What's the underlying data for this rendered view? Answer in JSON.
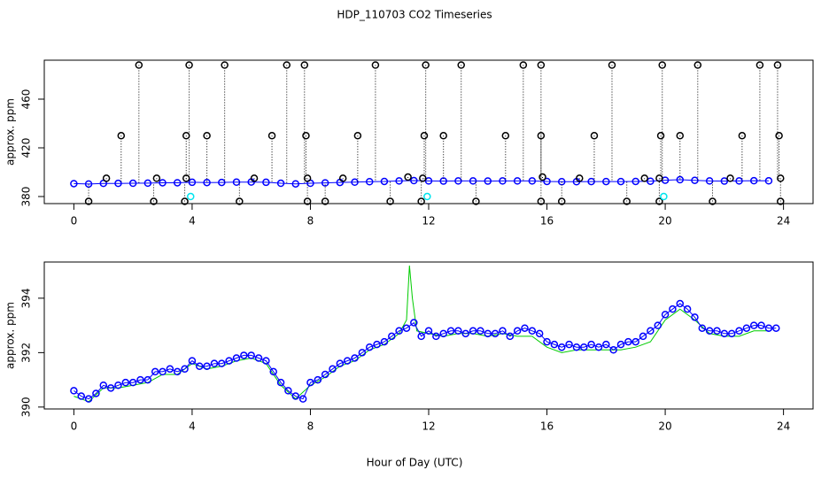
{
  "chart_data": [
    {
      "type": "scatter",
      "title": "HDP_110703  CO2 Timeseries",
      "ylabel": "approx. ppm",
      "xlim": [
        -1,
        25
      ],
      "ylim": [
        374.2,
        492
      ],
      "xticks": [
        0,
        4,
        8,
        12,
        16,
        20,
        24
      ],
      "yticks": [
        380,
        420,
        460
      ],
      "series": [
        {
          "color": "#0000ff",
          "marker": "circle",
          "line": true,
          "x": [
            0,
            0.5,
            1,
            1.5,
            2,
            2.5,
            3,
            3.5,
            4,
            4.5,
            5,
            5.5,
            6,
            6.5,
            7,
            7.5,
            8,
            8.5,
            9,
            9.5,
            10,
            10.5,
            11,
            11.5,
            12,
            12.5,
            13,
            13.5,
            14,
            14.5,
            15,
            15.5,
            16,
            16.5,
            17,
            17.5,
            18,
            18.5,
            19,
            19.5,
            20,
            20.5,
            21,
            21.5,
            22,
            22.5,
            23,
            23.5
          ],
          "values": [
            390.6,
            390.3,
            390.8,
            390.8,
            390.9,
            391.0,
            391.3,
            391.3,
            391.7,
            391.5,
            391.6,
            391.8,
            391.9,
            391.7,
            390.9,
            390.4,
            390.9,
            391.2,
            391.6,
            391.8,
            392.2,
            392.4,
            392.8,
            393.1,
            392.8,
            392.7,
            392.8,
            392.8,
            392.7,
            392.8,
            392.8,
            392.8,
            392.4,
            392.2,
            392.2,
            392.3,
            392.3,
            392.3,
            392.4,
            392.6,
            393.4,
            393.8,
            393.3,
            392.8,
            392.7,
            392.8,
            393.0,
            392.9
          ]
        },
        {
          "color": "#000000",
          "marker": "circle",
          "droplines": true,
          "x": [
            2.2,
            3.9,
            5.1,
            7.2,
            7.8,
            10.2,
            11.9,
            13.1,
            15.2,
            15.8,
            18.2,
            19.9,
            21.1,
            23.2,
            23.8,
            1.6,
            3.8,
            4.5,
            6.7,
            7.85,
            9.6,
            11.85,
            12.5,
            14.6,
            15.8,
            17.6,
            19.85,
            20.5,
            22.6,
            23.85,
            1.1,
            2.8,
            3.8,
            6.1,
            7.9,
            9.1,
            11.3,
            11.8,
            15.85,
            17.1,
            19.3,
            19.8,
            22.2,
            23.9,
            0.5,
            2.7,
            3.75,
            5.6,
            7.9,
            8.5,
            10.7,
            11.75,
            13.6,
            15.8,
            16.5,
            18.7,
            19.8,
            21.6,
            23.9
          ],
          "values": [
            488,
            488,
            488,
            488,
            488,
            488,
            488,
            488,
            488,
            488,
            488,
            488,
            488,
            488,
            488,
            430,
            430,
            430,
            430,
            430,
            430,
            430,
            430,
            430,
            430,
            430,
            430,
            430,
            430,
            430,
            395,
            395,
            395,
            395,
            395,
            395,
            396,
            395,
            396,
            395,
            395,
            395,
            395,
            395,
            376,
            376,
            376,
            376,
            376,
            376,
            376,
            376,
            376,
            376,
            376,
            376,
            376,
            376,
            376
          ]
        },
        {
          "color": "#00e5ee",
          "marker": "circle",
          "x": [
            3.95,
            11.95,
            19.95
          ],
          "values": [
            380,
            380,
            380
          ]
        }
      ]
    },
    {
      "type": "scatter",
      "ylabel": "approx. ppm",
      "xlabel": "Hour of Day (UTC)",
      "xlim": [
        -1,
        25
      ],
      "ylim": [
        389.93,
        395.33
      ],
      "xticks": [
        0,
        4,
        8,
        12,
        16,
        20,
        24
      ],
      "yticks": [
        390,
        392,
        394
      ],
      "series": [
        {
          "color": "#00cc00",
          "line": true,
          "x": [
            0,
            0.5,
            1,
            1.5,
            2,
            2.5,
            3,
            3.5,
            4,
            4.5,
            5,
            5.5,
            6,
            6.5,
            7,
            7.5,
            8,
            8.5,
            9,
            9.5,
            10,
            10.5,
            11,
            11.25,
            11.35,
            11.45,
            11.6,
            12,
            12.5,
            13,
            13.5,
            14,
            14.5,
            15,
            15.5,
            16,
            16.5,
            17,
            17.5,
            18,
            18.5,
            19,
            19.5,
            20,
            20.5,
            21,
            21.5,
            22,
            22.5,
            23,
            23.5
          ],
          "values": [
            390.4,
            390.2,
            390.7,
            390.7,
            390.8,
            390.9,
            391.2,
            391.2,
            391.6,
            391.4,
            391.5,
            391.7,
            391.8,
            391.6,
            390.8,
            390.3,
            390.8,
            391.1,
            391.5,
            391.7,
            392.1,
            392.3,
            392.7,
            393.2,
            395.2,
            394.0,
            392.8,
            392.7,
            392.6,
            392.7,
            392.7,
            392.6,
            392.7,
            392.6,
            392.6,
            392.2,
            392.0,
            392.1,
            392.1,
            392.1,
            392.1,
            392.2,
            392.4,
            393.2,
            393.6,
            393.2,
            392.7,
            392.6,
            392.6,
            392.8,
            392.8
          ]
        },
        {
          "color": "#0000ff",
          "marker": "circle",
          "line": true,
          "x": [
            0,
            0.25,
            0.5,
            0.75,
            1,
            1.25,
            1.5,
            1.75,
            2,
            2.25,
            2.5,
            2.75,
            3,
            3.25,
            3.5,
            3.75,
            4,
            4.25,
            4.5,
            4.75,
            5,
            5.25,
            5.5,
            5.75,
            6,
            6.25,
            6.5,
            6.75,
            7,
            7.25,
            7.5,
            7.75,
            8,
            8.25,
            8.5,
            8.75,
            9,
            9.25,
            9.5,
            9.75,
            10,
            10.25,
            10.5,
            10.75,
            11,
            11.25,
            11.5,
            11.75,
            12,
            12.25,
            12.5,
            12.75,
            13,
            13.25,
            13.5,
            13.75,
            14,
            14.25,
            14.5,
            14.75,
            15,
            15.25,
            15.5,
            15.75,
            16,
            16.25,
            16.5,
            16.75,
            17,
            17.25,
            17.5,
            17.75,
            18,
            18.25,
            18.5,
            18.75,
            19,
            19.25,
            19.5,
            19.75,
            20,
            20.25,
            20.5,
            20.75,
            21,
            21.25,
            21.5,
            21.75,
            22,
            22.25,
            22.5,
            22.75,
            23,
            23.25,
            23.5,
            23.75
          ],
          "values": [
            390.6,
            390.4,
            390.3,
            390.5,
            390.8,
            390.7,
            390.8,
            390.9,
            390.9,
            391.0,
            391.0,
            391.3,
            391.3,
            391.4,
            391.3,
            391.4,
            391.7,
            391.5,
            391.5,
            391.6,
            391.6,
            391.7,
            391.8,
            391.9,
            391.9,
            391.8,
            391.7,
            391.3,
            390.9,
            390.6,
            390.4,
            390.3,
            390.9,
            391.0,
            391.2,
            391.4,
            391.6,
            391.7,
            391.8,
            392.0,
            392.2,
            392.3,
            392.4,
            392.6,
            392.8,
            392.9,
            393.1,
            392.6,
            392.8,
            392.6,
            392.7,
            392.8,
            392.8,
            392.7,
            392.8,
            392.8,
            392.7,
            392.7,
            392.8,
            392.6,
            392.8,
            392.9,
            392.8,
            392.7,
            392.4,
            392.3,
            392.2,
            392.3,
            392.2,
            392.2,
            392.3,
            392.2,
            392.3,
            392.1,
            392.3,
            392.4,
            392.4,
            392.6,
            392.8,
            393.0,
            393.4,
            393.6,
            393.8,
            393.6,
            393.3,
            392.9,
            392.8,
            392.8,
            392.7,
            392.7,
            392.8,
            392.9,
            393.0,
            393.0,
            392.9,
            392.9
          ]
        }
      ]
    }
  ]
}
